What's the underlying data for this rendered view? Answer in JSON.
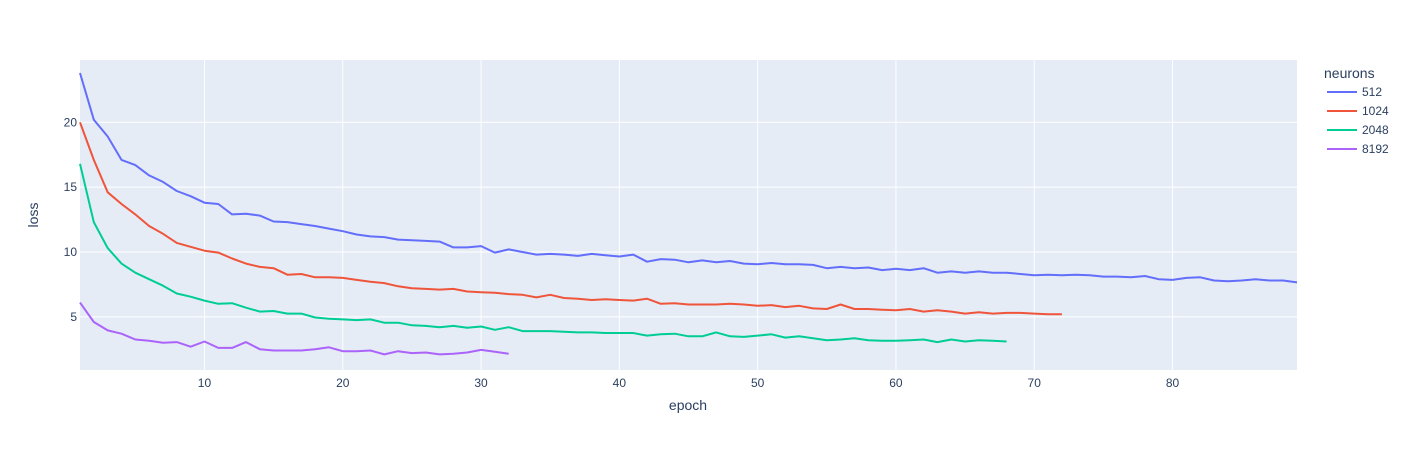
{
  "chart_data": {
    "type": "line",
    "title": "",
    "xlabel": "epoch",
    "ylabel": "loss",
    "xlim": [
      1,
      89
    ],
    "ylim": [
      0.9,
      24.8
    ],
    "x_ticks": [
      10,
      20,
      30,
      40,
      50,
      60,
      70,
      80
    ],
    "y_ticks": [
      5,
      10,
      15,
      20
    ],
    "grid": true,
    "legend_title": "neurons",
    "legend_position": "top-right",
    "colors": {
      "plot_background": "#E5ECF6",
      "grid": "#ffffff",
      "text": "#2a3f5f"
    },
    "series": [
      {
        "name": "512",
        "color": "#636EFA",
        "x": [
          1,
          2,
          3,
          4,
          5,
          6,
          7,
          8,
          9,
          10,
          11,
          12,
          13,
          14,
          15,
          16,
          17,
          18,
          19,
          20,
          21,
          22,
          23,
          24,
          25,
          26,
          27,
          28,
          29,
          30,
          31,
          32,
          33,
          34,
          35,
          36,
          37,
          38,
          39,
          40,
          41,
          42,
          43,
          44,
          45,
          46,
          47,
          48,
          49,
          50,
          51,
          52,
          53,
          54,
          55,
          56,
          57,
          58,
          59,
          60,
          61,
          62,
          63,
          64,
          65,
          66,
          67,
          68,
          69,
          70,
          71,
          72,
          73,
          74,
          75,
          76,
          77,
          78,
          79,
          80,
          81,
          82,
          83,
          84,
          85,
          86,
          87,
          88,
          89
        ],
        "y": [
          23.8,
          20.2,
          18.9,
          17.1,
          16.7,
          15.9,
          15.4,
          14.7,
          14.3,
          13.8,
          13.7,
          12.9,
          12.95,
          12.8,
          12.35,
          12.3,
          12.15,
          12.0,
          11.8,
          11.6,
          11.35,
          11.2,
          11.15,
          10.95,
          10.9,
          10.85,
          10.8,
          10.35,
          10.35,
          10.45,
          9.95,
          10.2,
          10.0,
          9.8,
          9.85,
          9.8,
          9.7,
          9.85,
          9.75,
          9.65,
          9.8,
          9.25,
          9.45,
          9.4,
          9.2,
          9.35,
          9.2,
          9.3,
          9.1,
          9.05,
          9.15,
          9.05,
          9.05,
          9.0,
          8.75,
          8.85,
          8.75,
          8.8,
          8.6,
          8.7,
          8.6,
          8.75,
          8.4,
          8.5,
          8.4,
          8.5,
          8.4,
          8.4,
          8.3,
          8.2,
          8.25,
          8.2,
          8.25,
          8.2,
          8.1,
          8.1,
          8.05,
          8.15,
          7.9,
          7.85,
          8.0,
          8.05,
          7.8,
          7.75,
          7.8,
          7.9,
          7.8,
          7.8,
          7.65
        ]
      },
      {
        "name": "1024",
        "color": "#EF553B",
        "x": [
          1,
          2,
          3,
          4,
          5,
          6,
          7,
          8,
          9,
          10,
          11,
          12,
          13,
          14,
          15,
          16,
          17,
          18,
          19,
          20,
          21,
          22,
          23,
          24,
          25,
          26,
          27,
          28,
          29,
          30,
          31,
          32,
          33,
          34,
          35,
          36,
          37,
          38,
          39,
          40,
          41,
          42,
          43,
          44,
          45,
          46,
          47,
          48,
          49,
          50,
          51,
          52,
          53,
          54,
          55,
          56,
          57,
          58,
          59,
          60,
          61,
          62,
          63,
          64,
          65,
          66,
          67,
          68,
          69,
          70,
          71,
          72
        ],
        "y": [
          20.0,
          17.1,
          14.6,
          13.7,
          12.9,
          12.0,
          11.4,
          10.7,
          10.4,
          10.1,
          9.95,
          9.5,
          9.1,
          8.85,
          8.75,
          8.25,
          8.3,
          8.05,
          8.05,
          8.0,
          7.85,
          7.7,
          7.6,
          7.35,
          7.2,
          7.15,
          7.1,
          7.15,
          6.95,
          6.9,
          6.85,
          6.75,
          6.7,
          6.5,
          6.7,
          6.45,
          6.4,
          6.3,
          6.35,
          6.3,
          6.25,
          6.4,
          6.0,
          6.05,
          5.95,
          5.95,
          5.95,
          6.0,
          5.95,
          5.85,
          5.9,
          5.75,
          5.85,
          5.65,
          5.6,
          5.95,
          5.6,
          5.6,
          5.55,
          5.5,
          5.6,
          5.4,
          5.5,
          5.4,
          5.25,
          5.35,
          5.25,
          5.3,
          5.3,
          5.25,
          5.2,
          5.2
        ]
      },
      {
        "name": "2048",
        "color": "#00CC96",
        "x": [
          1,
          2,
          3,
          4,
          5,
          6,
          7,
          8,
          9,
          10,
          11,
          12,
          13,
          14,
          15,
          16,
          17,
          18,
          19,
          20,
          21,
          22,
          23,
          24,
          25,
          26,
          27,
          28,
          29,
          30,
          31,
          32,
          33,
          34,
          35,
          36,
          37,
          38,
          39,
          40,
          41,
          42,
          43,
          44,
          45,
          46,
          47,
          48,
          49,
          50,
          51,
          52,
          53,
          54,
          55,
          56,
          57,
          58,
          59,
          60,
          61,
          62,
          63,
          64,
          65,
          66,
          67,
          68
        ],
        "y": [
          16.8,
          12.3,
          10.3,
          9.1,
          8.4,
          7.9,
          7.4,
          6.8,
          6.55,
          6.25,
          6.0,
          6.05,
          5.7,
          5.4,
          5.45,
          5.25,
          5.25,
          4.95,
          4.85,
          4.8,
          4.75,
          4.8,
          4.55,
          4.55,
          4.35,
          4.3,
          4.2,
          4.3,
          4.15,
          4.25,
          4.0,
          4.2,
          3.9,
          3.9,
          3.9,
          3.85,
          3.8,
          3.8,
          3.75,
          3.75,
          3.75,
          3.55,
          3.65,
          3.7,
          3.5,
          3.5,
          3.8,
          3.5,
          3.45,
          3.55,
          3.65,
          3.4,
          3.5,
          3.35,
          3.2,
          3.25,
          3.35,
          3.2,
          3.15,
          3.15,
          3.2,
          3.25,
          3.05,
          3.25,
          3.1,
          3.2,
          3.15,
          3.1
        ]
      },
      {
        "name": "8192",
        "color": "#AB63FA",
        "x": [
          1,
          2,
          3,
          4,
          5,
          6,
          7,
          8,
          9,
          10,
          11,
          12,
          13,
          14,
          15,
          16,
          17,
          18,
          19,
          20,
          21,
          22,
          23,
          24,
          25,
          26,
          27,
          28,
          29,
          30,
          31,
          32
        ],
        "y": [
          6.1,
          4.6,
          3.95,
          3.7,
          3.25,
          3.15,
          3.0,
          3.05,
          2.7,
          3.1,
          2.6,
          2.6,
          3.05,
          2.5,
          2.4,
          2.4,
          2.4,
          2.5,
          2.65,
          2.35,
          2.35,
          2.4,
          2.1,
          2.35,
          2.2,
          2.25,
          2.1,
          2.15,
          2.25,
          2.45,
          2.3,
          2.15
        ]
      }
    ]
  }
}
